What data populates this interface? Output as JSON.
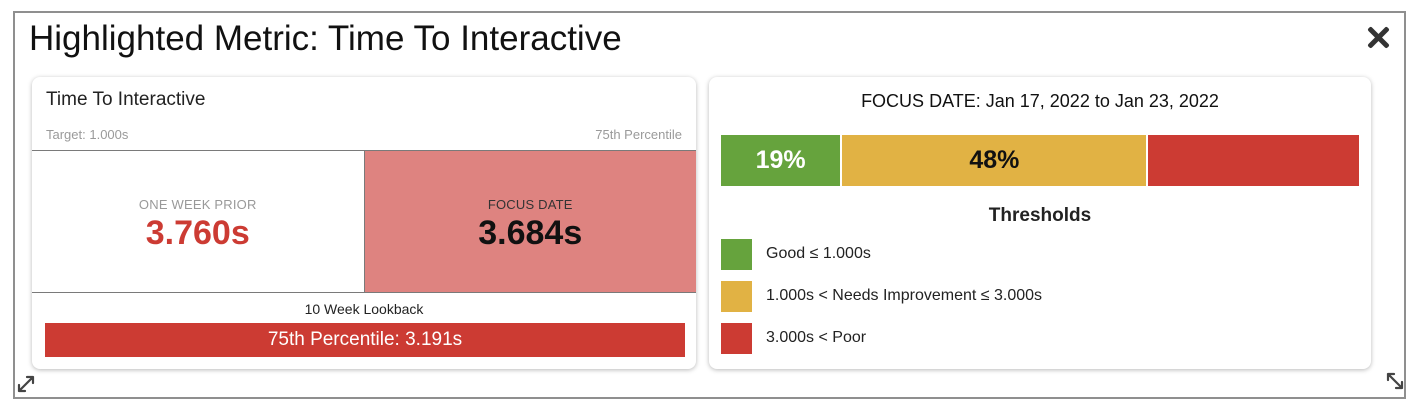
{
  "header": {
    "title": "Highlighted Metric: Time To Interactive",
    "close_icon": "close-icon"
  },
  "metric_card": {
    "title": "Time To Interactive",
    "target": "Target: 1.000s",
    "percentile_label": "75th Percentile",
    "prior": {
      "label": "ONE WEEK PRIOR",
      "value": "3.760s",
      "color": "#cc3b33"
    },
    "focus": {
      "label": "FOCUS DATE",
      "value": "3.684s",
      "background": "#de8380"
    },
    "lookback_label": "10 Week Lookback",
    "lookback_bar": "75th Percentile: 3.191s"
  },
  "distribution_card": {
    "title": "FOCUS DATE: Jan 17, 2022 to Jan 23, 2022",
    "segments": [
      {
        "label": "19%",
        "share": 0.19,
        "color": "#66a33d"
      },
      {
        "label": "48%",
        "share": 0.48,
        "color": "#e1b244"
      },
      {
        "label": "",
        "share": 0.33,
        "color": "#cc3b33"
      }
    ],
    "thresholds_title": "Thresholds",
    "thresholds": [
      {
        "label": "Good ≤ 1.000s",
        "color": "#66a33d"
      },
      {
        "label": "1.000s < Needs Improvement ≤ 3.000s",
        "color": "#e1b244"
      },
      {
        "label": "3.000s < Poor",
        "color": "#cc3b33"
      }
    ]
  },
  "icons": {
    "resize_left": "expand-diagonal-icon",
    "resize_right": "resize-diagonal-icon"
  }
}
